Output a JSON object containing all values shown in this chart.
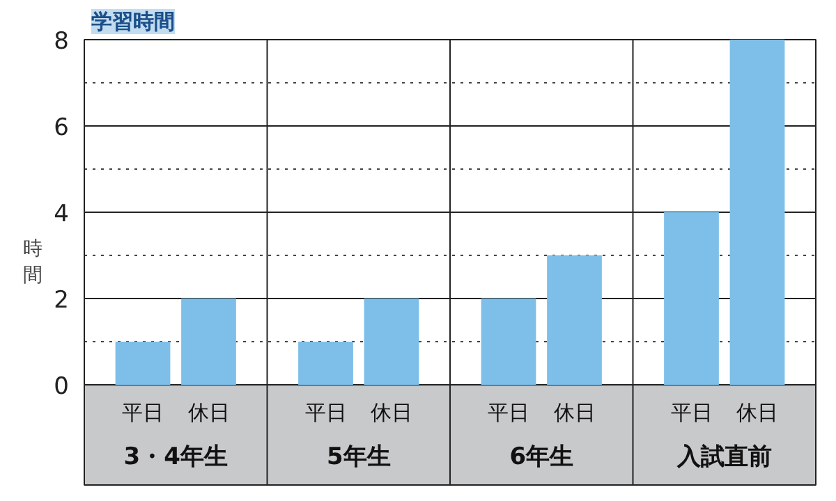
{
  "chart_data": {
    "type": "bar",
    "title": "学習時間",
    "ylabel": "時間",
    "categories": [
      "平日",
      "休日",
      "平日",
      "休日",
      "平日",
      "休日",
      "平日",
      "休日"
    ],
    "values": [
      1,
      2,
      1,
      2,
      2,
      3,
      4,
      8
    ],
    "color": "#7dbfe8",
    "annotations": [
      "3・4年生",
      "5年生",
      "6年生",
      "入試直前"
    ],
    "ylim": [
      0,
      8
    ],
    "yticks": [
      0,
      {
        "value": 1,
        "label": null
      },
      2,
      {
        "value": 3,
        "label": null
      },
      4,
      {
        "value": 5,
        "label": null
      },
      6,
      {
        "value": 7,
        "label": null
      },
      8
    ],
    "grid": "y"
  }
}
